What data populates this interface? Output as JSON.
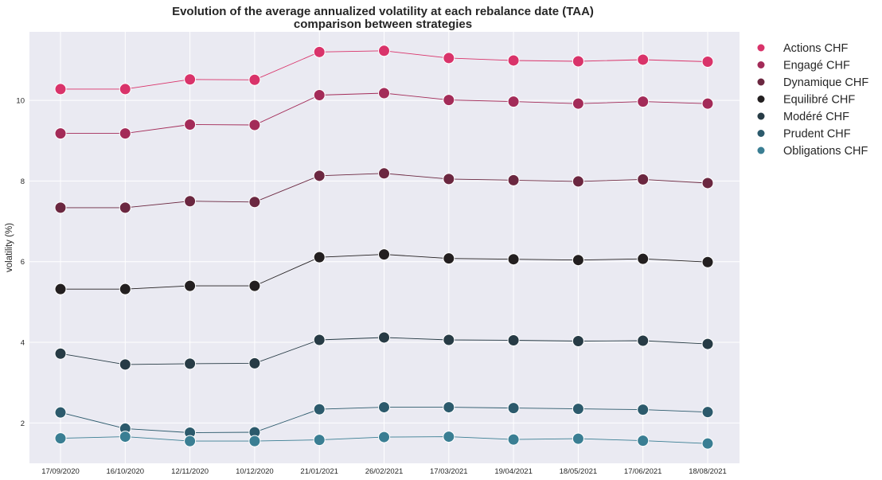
{
  "chart_data": {
    "type": "line",
    "title": "Evolution of the average annualized volatility at each rebalance date (TAA)",
    "subtitle": "comparison between strategies",
    "xlabel": "",
    "ylabel": "volatility (%)",
    "categories": [
      "17/09/2020",
      "16/10/2020",
      "12/11/2020",
      "10/12/2020",
      "21/01/2021",
      "26/02/2021",
      "17/03/2021",
      "19/04/2021",
      "18/05/2021",
      "17/06/2021",
      "18/08/2021"
    ],
    "ylim": [
      1.0,
      11.7
    ],
    "yticks": [
      2,
      4,
      6,
      8,
      10
    ],
    "grid": true,
    "legend_position": "outside-right",
    "series": [
      {
        "name": "Actions CHF",
        "color": "#d9336a",
        "values": [
          10.28,
          10.28,
          10.52,
          10.51,
          11.2,
          11.23,
          11.05,
          10.99,
          10.97,
          11.01,
          10.96
        ]
      },
      {
        "name": "Engagé CHF",
        "color": "#a32b58",
        "values": [
          9.18,
          9.18,
          9.4,
          9.39,
          10.13,
          10.18,
          10.01,
          9.97,
          9.92,
          9.97,
          9.92
        ]
      },
      {
        "name": "Dynamique CHF",
        "color": "#6b2740",
        "values": [
          7.34,
          7.34,
          7.5,
          7.48,
          8.13,
          8.19,
          8.05,
          8.02,
          7.99,
          8.04,
          7.95
        ]
      },
      {
        "name": "Equilibré CHF",
        "color": "#231f20",
        "values": [
          5.32,
          5.32,
          5.4,
          5.4,
          6.11,
          6.18,
          6.08,
          6.06,
          6.04,
          6.07,
          5.99
        ]
      },
      {
        "name": "Modéré CHF",
        "color": "#273b45",
        "values": [
          3.72,
          3.45,
          3.47,
          3.48,
          4.06,
          4.12,
          4.06,
          4.05,
          4.03,
          4.04,
          3.96
        ]
      },
      {
        "name": "Prudent CHF",
        "color": "#2c5a6c",
        "values": [
          2.26,
          1.86,
          1.76,
          1.77,
          2.34,
          2.39,
          2.39,
          2.37,
          2.35,
          2.33,
          2.27
        ]
      },
      {
        "name": "Obligations CHF",
        "color": "#3a7e93",
        "values": [
          1.62,
          1.66,
          1.55,
          1.55,
          1.58,
          1.65,
          1.66,
          1.59,
          1.61,
          1.56,
          1.49
        ]
      }
    ]
  }
}
